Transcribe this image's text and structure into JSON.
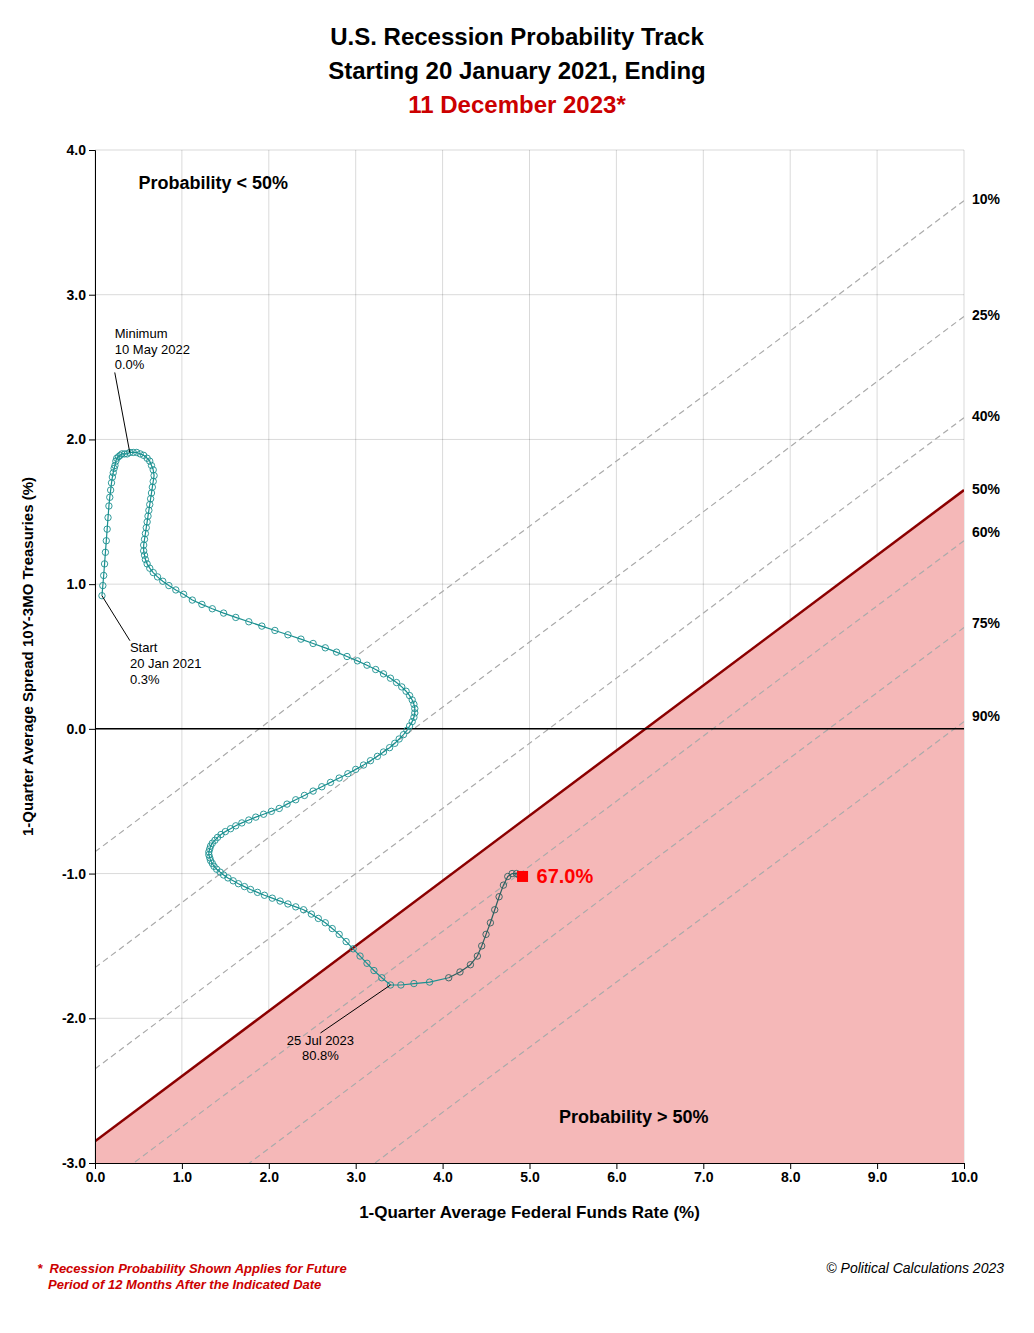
{
  "chart_data": {
    "type": "line",
    "title_lines": [
      "U.S. Recession Probability Track",
      "Starting 20 January 2021, Ending",
      "11 December 2023*"
    ],
    "title_colors": [
      "#000000",
      "#000000",
      "#cc0000"
    ],
    "xlabel": "1-Quarter Average Federal Funds Rate (%)",
    "ylabel": "1-Quarter Average Spread 10Y-3MO Treasuries (%)",
    "xlim": [
      0,
      10
    ],
    "ylim": [
      -3,
      4
    ],
    "xticks": [
      {
        "value": 0.0,
        "label": "0.0"
      },
      {
        "value": 1.0,
        "label": "1.0"
      },
      {
        "value": 2.0,
        "label": "2.0"
      },
      {
        "value": 3.0,
        "label": "3.0"
      },
      {
        "value": 4.0,
        "label": "4.0"
      },
      {
        "value": 5.0,
        "label": "5.0"
      },
      {
        "value": 6.0,
        "label": "6.0"
      },
      {
        "value": 7.0,
        "label": "7.0"
      },
      {
        "value": 8.0,
        "label": "8.0"
      },
      {
        "value": 9.0,
        "label": "9.0"
      },
      {
        "value": 10.0,
        "label": "10.0"
      }
    ],
    "yticks": [
      {
        "value": -3.0,
        "label": "-3.0"
      },
      {
        "value": -2.0,
        "label": "-2.0"
      },
      {
        "value": -1.0,
        "label": "-1.0"
      },
      {
        "value": 0.0,
        "label": "0.0"
      },
      {
        "value": 1.0,
        "label": "1.0"
      },
      {
        "value": 2.0,
        "label": "2.0"
      },
      {
        "value": 3.0,
        "label": "3.0"
      },
      {
        "value": 4.0,
        "label": "4.0"
      }
    ],
    "grid": true,
    "boundary": {
      "slope": 0.45,
      "intercept": -2.85,
      "label": "50%",
      "label_y": 1.65,
      "color": "#8b0000",
      "fill_color": "#f5b8b8"
    },
    "iso_lines": {
      "slope": 0.45,
      "intercepts": [
        -0.85,
        -1.65,
        -2.35,
        -3.2,
        -3.8,
        -4.45
      ],
      "labels": [
        "10%",
        "25%",
        "40%",
        "60%",
        "75%",
        "90%"
      ],
      "label_y": [
        3.65,
        2.85,
        2.15,
        1.35,
        0.72,
        0.08
      ],
      "color": "#aaaaaa",
      "line_style": "dashed"
    },
    "reference_lines": [
      {
        "axis": "y",
        "value": 0
      }
    ],
    "series": [
      {
        "marker": "circle",
        "x": [
          0.08,
          0.09,
          0.1,
          0.11,
          0.12,
          0.13,
          0.14,
          0.15,
          0.16,
          0.17,
          0.18,
          0.19,
          0.2,
          0.21,
          0.22,
          0.23,
          0.24,
          0.25,
          0.27,
          0.29,
          0.31,
          0.34,
          0.37,
          0.4,
          0.44,
          0.48,
          0.52,
          0.56,
          0.6,
          0.63,
          0.65,
          0.67,
          0.68,
          0.67,
          0.66,
          0.65,
          0.64,
          0.63,
          0.62,
          0.61,
          0.6,
          0.59,
          0.58,
          0.57,
          0.56,
          0.56,
          0.57,
          0.58,
          0.6,
          0.63,
          0.67,
          0.72,
          0.78,
          0.85,
          0.93,
          1.02,
          1.12,
          1.23,
          1.35,
          1.48,
          1.62,
          1.77,
          1.92,
          2.07,
          2.22,
          2.37,
          2.51,
          2.65,
          2.78,
          2.9,
          3.02,
          3.13,
          3.23,
          3.32,
          3.4,
          3.47,
          3.53,
          3.58,
          3.62,
          3.65,
          3.67,
          3.68,
          3.68,
          3.67,
          3.65,
          3.62,
          3.59,
          3.55,
          3.5,
          3.45,
          3.39,
          3.32,
          3.25,
          3.17,
          3.09,
          3.0,
          2.91,
          2.81,
          2.71,
          2.61,
          2.51,
          2.41,
          2.31,
          2.21,
          2.12,
          2.03,
          1.94,
          1.85,
          1.77,
          1.69,
          1.62,
          1.56,
          1.5,
          1.45,
          1.41,
          1.38,
          1.35,
          1.33,
          1.32,
          1.31,
          1.31,
          1.32,
          1.33,
          1.35,
          1.37,
          1.4,
          1.44,
          1.48,
          1.53,
          1.59,
          1.65,
          1.72,
          1.79,
          1.87,
          1.95,
          2.04,
          2.13,
          2.22,
          2.31,
          2.4,
          2.49,
          2.57,
          2.65,
          2.73,
          2.81,
          2.89,
          2.97,
          3.05,
          3.13,
          3.21,
          3.3,
          3.4,
          3.52,
          3.67,
          3.85,
          4.07,
          4.2,
          4.32,
          4.4,
          4.45,
          4.5,
          4.55,
          4.6,
          4.65,
          4.7,
          4.75,
          4.8,
          4.85,
          4.88,
          4.9,
          4.92,
          4.93,
          4.94,
          4.93,
          4.92
        ],
        "values": [
          0.92,
          0.99,
          1.06,
          1.14,
          1.22,
          1.3,
          1.38,
          1.46,
          1.54,
          1.6,
          1.65,
          1.7,
          1.74,
          1.77,
          1.8,
          1.82,
          1.85,
          1.87,
          1.88,
          1.89,
          1.9,
          1.9,
          1.9,
          1.91,
          1.91,
          1.91,
          1.9,
          1.89,
          1.87,
          1.85,
          1.82,
          1.79,
          1.75,
          1.71,
          1.67,
          1.63,
          1.59,
          1.55,
          1.51,
          1.47,
          1.43,
          1.39,
          1.35,
          1.31,
          1.27,
          1.23,
          1.2,
          1.17,
          1.14,
          1.11,
          1.08,
          1.05,
          1.02,
          0.99,
          0.96,
          0.93,
          0.89,
          0.86,
          0.83,
          0.8,
          0.77,
          0.74,
          0.71,
          0.68,
          0.65,
          0.62,
          0.59,
          0.56,
          0.53,
          0.5,
          0.47,
          0.44,
          0.41,
          0.38,
          0.35,
          0.32,
          0.29,
          0.26,
          0.23,
          0.2,
          0.17,
          0.14,
          0.11,
          0.08,
          0.05,
          0.02,
          -0.01,
          -0.04,
          -0.07,
          -0.1,
          -0.13,
          -0.16,
          -0.19,
          -0.22,
          -0.25,
          -0.28,
          -0.31,
          -0.34,
          -0.37,
          -0.4,
          -0.43,
          -0.46,
          -0.49,
          -0.52,
          -0.55,
          -0.57,
          -0.59,
          -0.61,
          -0.63,
          -0.65,
          -0.67,
          -0.69,
          -0.71,
          -0.73,
          -0.75,
          -0.77,
          -0.79,
          -0.81,
          -0.83,
          -0.85,
          -0.87,
          -0.89,
          -0.91,
          -0.93,
          -0.95,
          -0.97,
          -0.99,
          -1.01,
          -1.03,
          -1.05,
          -1.07,
          -1.09,
          -1.11,
          -1.13,
          -1.15,
          -1.17,
          -1.19,
          -1.21,
          -1.23,
          -1.25,
          -1.28,
          -1.31,
          -1.34,
          -1.38,
          -1.42,
          -1.47,
          -1.52,
          -1.57,
          -1.62,
          -1.67,
          -1.72,
          -1.77,
          -1.77,
          -1.76,
          -1.75,
          -1.72,
          -1.68,
          -1.63,
          -1.57,
          -1.5,
          -1.42,
          -1.34,
          -1.25,
          -1.16,
          -1.08,
          -1.02,
          -1.0,
          -1.0,
          -1.01,
          -1.01,
          -1.01,
          -1.01,
          -1.02,
          -1.02,
          -1.02
        ],
        "colors": [
          "#1a9090",
          "#1a9090",
          "#1a9090",
          "#1a9090",
          "#1a9090",
          "#1a9090",
          "#1a9090",
          "#1a9090",
          "#1a9090",
          "#1a9090",
          "#1a9090",
          "#1a9090",
          "#1a9090",
          "#1a9090",
          "#1a9090",
          "#1a9090",
          "#1a9090",
          "#1a9090",
          "#1a9090",
          "#1a9090",
          "#1a9090",
          "#1a9090",
          "#1a9090",
          "#1a9090",
          "#1a9090",
          "#1a9090",
          "#1a9090",
          "#1a9090",
          "#1a9090",
          "#1a9090",
          "#1a9090",
          "#1a9090",
          "#1a9090",
          "#1a9090",
          "#1a9090",
          "#1a9090",
          "#1a9090",
          "#1a9090",
          "#1a9090",
          "#1a9090",
          "#1a9090",
          "#1a9090",
          "#1a9090",
          "#1a9090",
          "#1a9090",
          "#1a9090",
          "#1a9090",
          "#1a9090",
          "#1a9090",
          "#1a9090",
          "#1a9090",
          "#1a9090",
          "#1a9090",
          "#1a9090",
          "#1a9090",
          "#1a9090",
          "#1a9090",
          "#1a9090",
          "#1a9090",
          "#1a9090",
          "#1a9090",
          "#1a9090",
          "#1a9090",
          "#1a9090",
          "#1a9090",
          "#1a9090",
          "#1a9090",
          "#1a9090",
          "#1a9090",
          "#1a9090",
          "#1a9090",
          "#1a9090",
          "#1a9090",
          "#1a9090",
          "#1a9090",
          "#1a9090",
          "#1a9090",
          "#1a9090",
          "#1a9090",
          "#1a9090",
          "#1a9090",
          "#1a9090",
          "#1a9090",
          "#1a9090",
          "#1a9090",
          "#1a9090",
          "#1a9090",
          "#1a9090",
          "#1a9090",
          "#1a9090",
          "#1a9090",
          "#1a9090",
          "#1a9090",
          "#1a9090",
          "#1a9090",
          "#1a9090",
          "#1a9090",
          "#1a9090",
          "#1a9090",
          "#1a9090",
          "#1a9090",
          "#1a9090",
          "#1a9090",
          "#1a9090",
          "#1a9090",
          "#1a9090",
          "#1a9090",
          "#1a9090",
          "#1a9090",
          "#1a9090",
          "#1a9090",
          "#1a9090",
          "#1a9090",
          "#1a9090",
          "#1a9090",
          "#1a9090",
          "#1a9090",
          "#1a9090",
          "#1a9090",
          "#1a9090",
          "#1a9090",
          "#1a9090",
          "#1a9090",
          "#1a9090",
          "#1a9090",
          "#1a9090",
          "#1a9090",
          "#1a9090",
          "#1a9090",
          "#1a9090",
          "#1a9090",
          "#1a9090",
          "#1a9090",
          "#1a9090",
          "#1a9090",
          "#1a9090",
          "#1a9090",
          "#1a9090",
          "#1a9090",
          "#1a9090",
          "#1a9090",
          "#1a9090",
          "#1a9090",
          "#1a9090",
          "#1a9090",
          "#1a9090",
          "#1a9090",
          "#1a9090",
          "#1a9090",
          "#1a9090",
          "#1a9090",
          "#1a9090",
          "#1a9090",
          "#1a9090",
          "#1a9090",
          "#2d6060",
          "#2d6060",
          "#2d6060",
          "#2d6060",
          "#2d6060",
          "#2d6060",
          "#2d6060",
          "#2d6060",
          "#2d6060",
          "#2d6060",
          "#2d6060",
          "#2d6060",
          "#2d6060",
          "#2d6060",
          "#2d6060",
          "#2d6060",
          "#2d6060",
          "#2d6060",
          "#2d6060",
          "#2d6060"
        ]
      }
    ],
    "annotations": [
      {
        "text": "Start\n20 Jan 2021\n0.3%",
        "x": 0.08,
        "y": 0.92
      },
      {
        "text": "Minimum\n10 May 2022\n0.0%",
        "x": 0.4,
        "y": 1.91
      },
      {
        "text": "25 Jul 2023\n80.8%",
        "x": 3.4,
        "y": -1.77
      },
      {
        "text": "67.0%",
        "x": 4.92,
        "y": -1.02,
        "color": "red",
        "marker": "square"
      }
    ],
    "region_labels": [
      "Probability < 50%",
      "Probability > 50%"
    ],
    "footnotes": [
      {
        "text": "  *  Recession Probability Shown Applies for Future\n     Period of 12 Months After the Indicated Date",
        "color": "#cc0000"
      },
      {
        "text": "© Political Calculations 2023",
        "color": "#000000"
      }
    ]
  }
}
